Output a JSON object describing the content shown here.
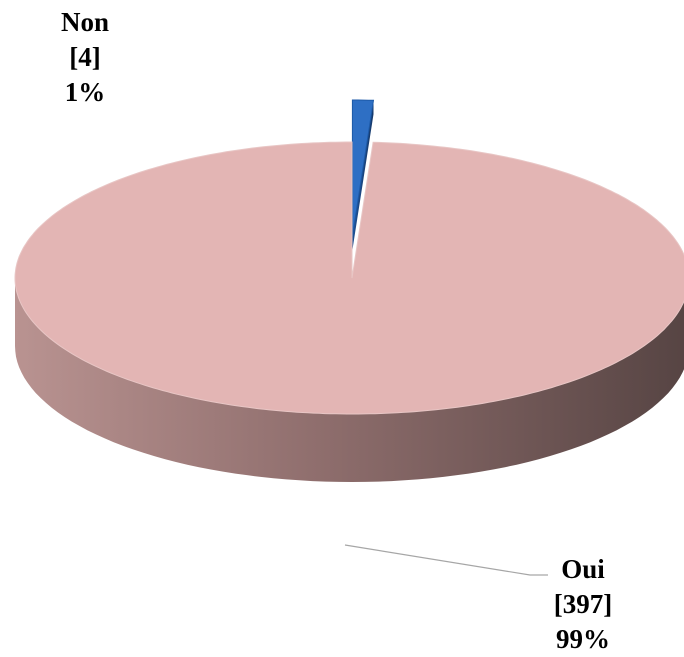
{
  "chart_data": {
    "type": "pie3d",
    "categories": [
      "Non",
      "Oui"
    ],
    "values": [
      4,
      397
    ],
    "value_labels": [
      "[4]",
      "[397]"
    ],
    "percent_labels": [
      "1%",
      "99%"
    ],
    "colors": [
      "#2e6fc4",
      "#e3b5b4"
    ],
    "exploded": [
      true,
      false
    ]
  }
}
